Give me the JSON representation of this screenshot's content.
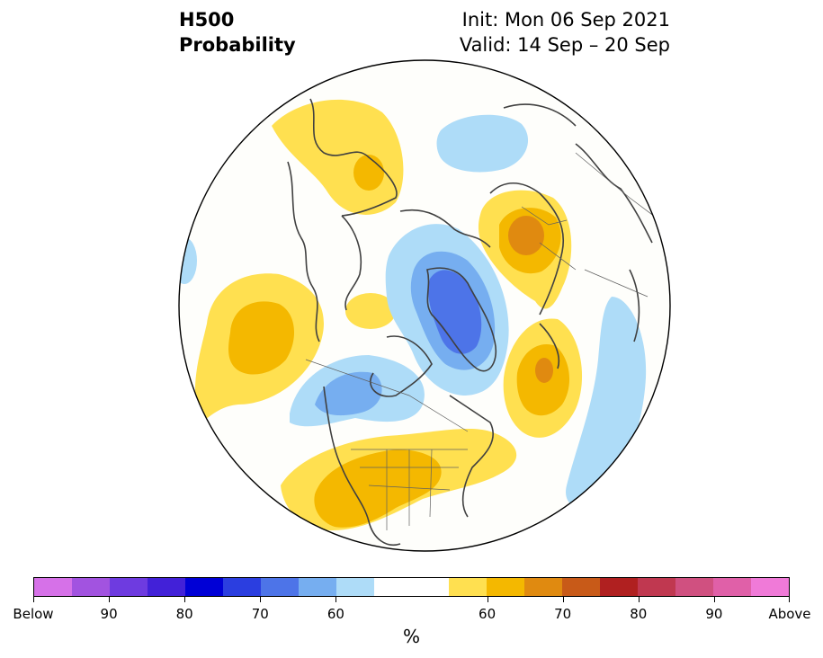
{
  "header": {
    "title_line1": "H500",
    "title_line2": "Probability",
    "init": "Init: Mon 06 Sep 2021",
    "valid": "Valid: 14 Sep – 20 Sep"
  },
  "colorbar": {
    "colors": [
      "#d671e8",
      "#a253e0",
      "#6e3be0",
      "#4221d8",
      "#0000d6",
      "#2b3ee0",
      "#4d74e8",
      "#76aef0",
      "#aedcf8",
      "#ffffff",
      "#ffffff",
      "#ffe050",
      "#f4b800",
      "#e08a10",
      "#c85a18",
      "#b02020",
      "#c03850",
      "#d05080",
      "#e060a8",
      "#f07ad8"
    ],
    "tick_labels": [
      "Below",
      "90",
      "80",
      "70",
      "60",
      "60",
      "70",
      "80",
      "90",
      "Above"
    ],
    "unit": "%"
  },
  "map": {
    "projection": "north-polar-stereographic",
    "below_normal_color": "#aedcf8",
    "above_normal_color": "#ffe050"
  }
}
